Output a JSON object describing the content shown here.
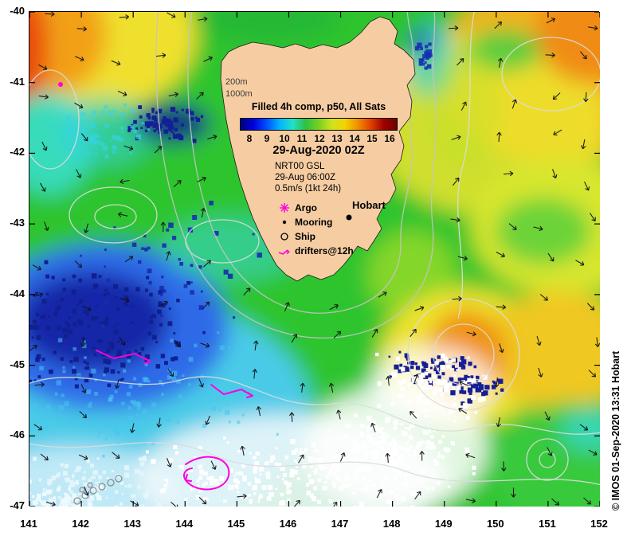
{
  "frame": {
    "watermark": "© IMOS 01-Sep-2020 13:31 Hobart"
  },
  "axes": {
    "x_ticks": [
      "141",
      "142",
      "143",
      "144",
      "145",
      "146",
      "147",
      "148",
      "149",
      "150",
      "151",
      "152"
    ],
    "y_ticks": [
      "-40",
      "-41",
      "-42",
      "-43",
      "-44",
      "-45",
      "-46",
      "-47"
    ],
    "x_range": [
      141,
      152
    ],
    "y_range": [
      -47,
      -40
    ]
  },
  "legend": {
    "contour_labels": [
      "200m",
      "1000m"
    ],
    "colorbar_title": "Filled 4h comp, p50, All Sats",
    "colorbar_ticks": [
      "8",
      "9",
      "10",
      "11",
      "12",
      "13",
      "14",
      "15",
      "16"
    ],
    "colorbar_colors": [
      "#00007f",
      "#0000e0",
      "#0050ff",
      "#00b4ff",
      "#22e0c8",
      "#2fc040",
      "#78d020",
      "#cfe21e",
      "#f2d400",
      "#f09000",
      "#e04000",
      "#a00000",
      "#700000"
    ],
    "datetime": "29-Aug-2020 02Z",
    "model": "NRT00 GSL",
    "model_time": "29-Aug 06:00Z",
    "vector_scale": "0.5m/s  (1kt 24h)",
    "items": [
      {
        "id": "argo",
        "label": "Argo"
      },
      {
        "id": "mooring",
        "label": "Mooring"
      },
      {
        "id": "ship",
        "label": "Ship"
      },
      {
        "id": "drifter",
        "label": "drifters@12h"
      }
    ]
  },
  "map": {
    "city_label": "Hobart"
  },
  "colors": {
    "land": "#f6cda2",
    "magenta": "#ff00dd",
    "contour": "#dcdcdc"
  }
}
